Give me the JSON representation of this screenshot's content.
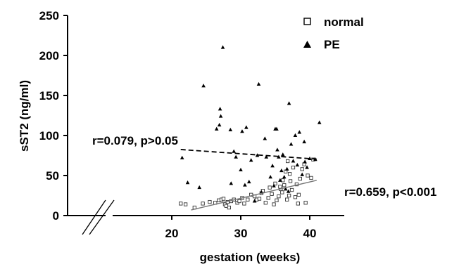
{
  "chart_data": {
    "type": "scatter",
    "xlabel": "gestation (weeks)",
    "ylabel": "sST2 (ng/ml)",
    "xlim": [
      10,
      45
    ],
    "ylim": [
      0,
      250
    ],
    "xticks": [
      20,
      30,
      40
    ],
    "yticks": [
      0,
      50,
      100,
      150,
      200,
      250
    ],
    "grid": false,
    "legend_position": "top-right",
    "axis_break": "x",
    "series": [
      {
        "name": "normal",
        "marker": "open-square",
        "color": "#000000",
        "points": [
          [
            21.3,
            15
          ],
          [
            22,
            14
          ],
          [
            23.3,
            10
          ],
          [
            24.5,
            15
          ],
          [
            25.5,
            17
          ],
          [
            26.3,
            16
          ],
          [
            26.8,
            19
          ],
          [
            27.2,
            20
          ],
          [
            27.5,
            21
          ],
          [
            27.7,
            14
          ],
          [
            27.9,
            12
          ],
          [
            28.1,
            17
          ],
          [
            28.3,
            10
          ],
          [
            28.6,
            18
          ],
          [
            29,
            20
          ],
          [
            29.5,
            16
          ],
          [
            29.8,
            18
          ],
          [
            30.2,
            22
          ],
          [
            30.5,
            15
          ],
          [
            31,
            20
          ],
          [
            31.5,
            26
          ],
          [
            32,
            24
          ],
          [
            32.3,
            20
          ],
          [
            32.7,
            21
          ],
          [
            33,
            28
          ],
          [
            33.2,
            31
          ],
          [
            33.6,
            16
          ],
          [
            34,
            22
          ],
          [
            34.2,
            35
          ],
          [
            34.5,
            27
          ],
          [
            34.8,
            14
          ],
          [
            35,
            40
          ],
          [
            35.2,
            19
          ],
          [
            35.5,
            24
          ],
          [
            35.8,
            33
          ],
          [
            36,
            29
          ],
          [
            36.3,
            38
          ],
          [
            36.5,
            55
          ],
          [
            36.7,
            20
          ],
          [
            37,
            25
          ],
          [
            37.2,
            43
          ],
          [
            37.4,
            32
          ],
          [
            37.6,
            60
          ],
          [
            37.9,
            23
          ],
          [
            38.1,
            39
          ],
          [
            38.3,
            15
          ],
          [
            38.6,
            46
          ],
          [
            38.9,
            58
          ],
          [
            39.2,
            64
          ],
          [
            39.4,
            16
          ],
          [
            39.7,
            50
          ],
          [
            40.2,
            47
          ],
          [
            40.5,
            70
          ],
          [
            36.8,
            68
          ],
          [
            35.7,
            36
          ],
          [
            36.1,
            44
          ],
          [
            37.1,
            52
          ],
          [
            38.4,
            26
          ]
        ]
      },
      {
        "name": "PE",
        "marker": "filled-triangle",
        "color": "#000000",
        "points": [
          [
            21.5,
            72
          ],
          [
            22.3,
            41
          ],
          [
            24,
            35
          ],
          [
            24.6,
            162
          ],
          [
            26.5,
            108
          ],
          [
            26.9,
            113
          ],
          [
            27,
            133
          ],
          [
            27.1,
            124
          ],
          [
            27.4,
            210
          ],
          [
            28.5,
            107
          ],
          [
            28.6,
            40
          ],
          [
            29,
            80
          ],
          [
            29.3,
            73
          ],
          [
            30,
            57
          ],
          [
            30.2,
            105
          ],
          [
            30.6,
            38
          ],
          [
            30.8,
            110
          ],
          [
            31.2,
            42
          ],
          [
            31.5,
            69
          ],
          [
            32,
            18
          ],
          [
            32.4,
            75
          ],
          [
            32.6,
            164
          ],
          [
            33,
            29
          ],
          [
            33.5,
            96
          ],
          [
            33.7,
            73
          ],
          [
            34.3,
            48
          ],
          [
            34.6,
            62
          ],
          [
            35,
            108
          ],
          [
            35.2,
            108
          ],
          [
            35.5,
            73
          ],
          [
            35.7,
            44
          ],
          [
            35.9,
            56
          ],
          [
            36.1,
            76
          ],
          [
            36.3,
            48
          ],
          [
            36.5,
            33
          ],
          [
            36.7,
            58
          ],
          [
            37,
            140
          ],
          [
            37.3,
            89
          ],
          [
            37.6,
            68
          ],
          [
            37.9,
            100
          ],
          [
            38.2,
            63
          ],
          [
            38.5,
            104
          ],
          [
            38.9,
            51
          ],
          [
            39.2,
            92
          ],
          [
            39.6,
            60
          ],
          [
            40,
            71
          ],
          [
            40.8,
            70
          ],
          [
            41.4,
            116
          ],
          [
            34.8,
            37
          ],
          [
            35.3,
            82
          ],
          [
            36.9,
            30
          ],
          [
            39.3,
            67
          ]
        ]
      }
    ],
    "regression_lines": [
      {
        "series": "PE",
        "style": "dashed",
        "x": [
          21.3,
          41
        ],
        "y": [
          82.5,
          70.5
        ]
      },
      {
        "series": "normal",
        "style": "solid",
        "color": "#777777",
        "x": [
          22.8,
          41
        ],
        "y": [
          7,
          44
        ]
      }
    ],
    "annotations": [
      {
        "text": "r=0.079, p>0.05",
        "for": "PE"
      },
      {
        "text": "r=0.659, p<0.001",
        "for": "normal"
      }
    ]
  }
}
